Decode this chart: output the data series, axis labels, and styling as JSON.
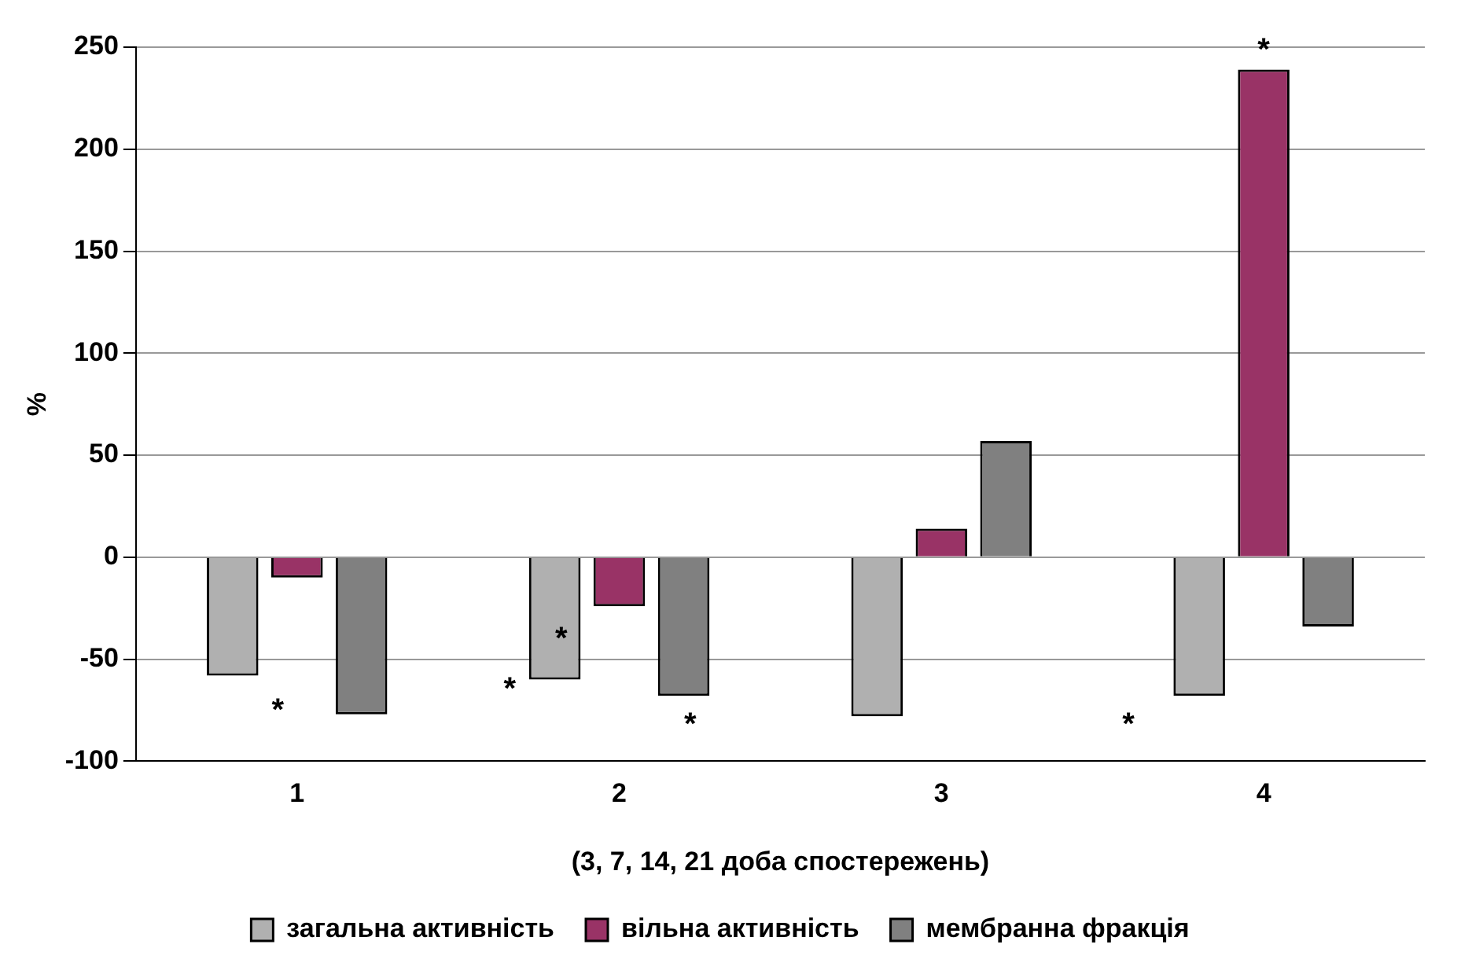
{
  "chart_data": {
    "type": "bar",
    "xlabel": "(3, 7, 14, 21 доба спостережень)",
    "ylabel": "%",
    "categories": [
      "1",
      "2",
      "3",
      "4"
    ],
    "series": [
      {
        "name": "загальна активність",
        "color": "#b0b0b0",
        "values": [
          -58,
          -60,
          -78,
          -68
        ]
      },
      {
        "name": "вільна активність",
        "color": "#993366",
        "values": [
          -10,
          -24,
          14,
          239
        ]
      },
      {
        "name": "мембранна фракція",
        "color": "#808080",
        "values": [
          -77,
          -68,
          57,
          -34
        ]
      }
    ],
    "ylim": [
      -100,
      250
    ],
    "yticks": [
      -100,
      -50,
      0,
      50,
      100,
      150,
      200,
      250
    ],
    "grid": "y",
    "legend": "bottom",
    "annotations": [
      "*",
      "*",
      "*",
      "*",
      "*",
      {
        "text": "*",
        "x": "4",
        "y": 239
      }
    ]
  }
}
